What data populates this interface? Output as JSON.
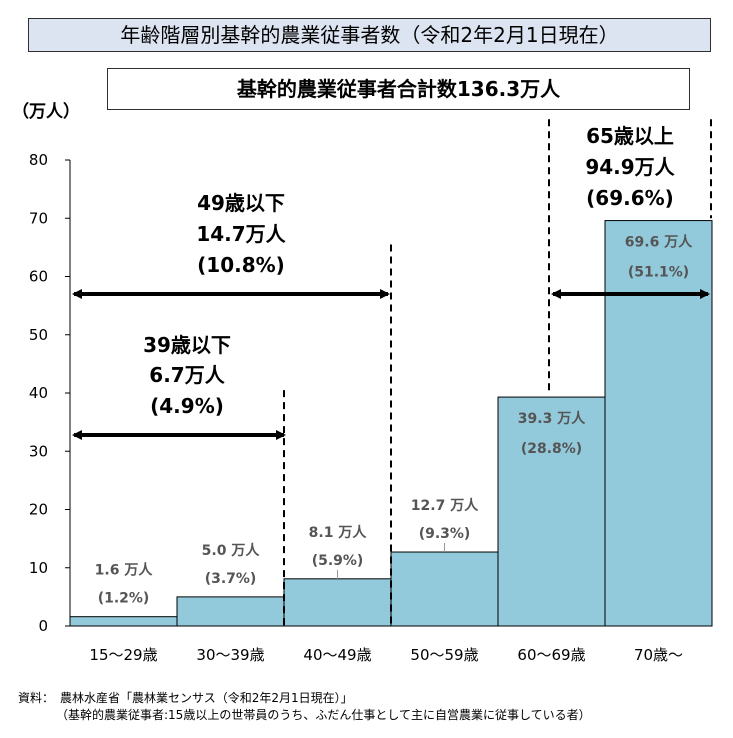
{
  "title": "年齢階層別基幹的農業従事者数（令和2年2月1日現在）",
  "total": "基幹的農業従事者合計数136.3万人",
  "chart_data": {
    "type": "bar",
    "ylabel": "（万人）",
    "ylim": [
      0,
      80
    ],
    "yticks": [
      "0",
      "10",
      "20",
      "30",
      "40",
      "50",
      "60",
      "70",
      "80"
    ],
    "categories": [
      "15～29歳",
      "30～39歳",
      "40～49歳",
      "50～59歳",
      "60～69歳",
      "70歳～"
    ],
    "values": [
      1.6,
      5.0,
      8.1,
      12.7,
      39.3,
      69.6
    ],
    "value_labels": [
      "1.6 万人",
      "5.0 万人",
      "8.1 万人",
      "12.7 万人",
      "39.3 万人",
      "69.6 万人"
    ],
    "pct_labels": [
      "(1.2%)",
      "(3.7%)",
      "(5.9%)",
      "(9.3%)",
      "(28.8%)",
      "(51.1%)"
    ],
    "bar_color": "#92c9db",
    "annotations": [
      {
        "lines": [
          "39歳以下",
          "6.7万人",
          "(4.9%)"
        ]
      },
      {
        "lines": [
          "49歳以下",
          "14.7万人",
          "(10.8%)"
        ]
      },
      {
        "lines": [
          "65歳以上",
          "94.9万人",
          "(69.6%)"
        ]
      }
    ]
  },
  "footer": {
    "source": "資料：　農林水産省「農林業センサス（令和2年2月1日現在）」",
    "note": "（基幹的農業従事者:15歳以上の世帯員のうち、ふだん仕事として主に自営農業に従事している者）"
  }
}
